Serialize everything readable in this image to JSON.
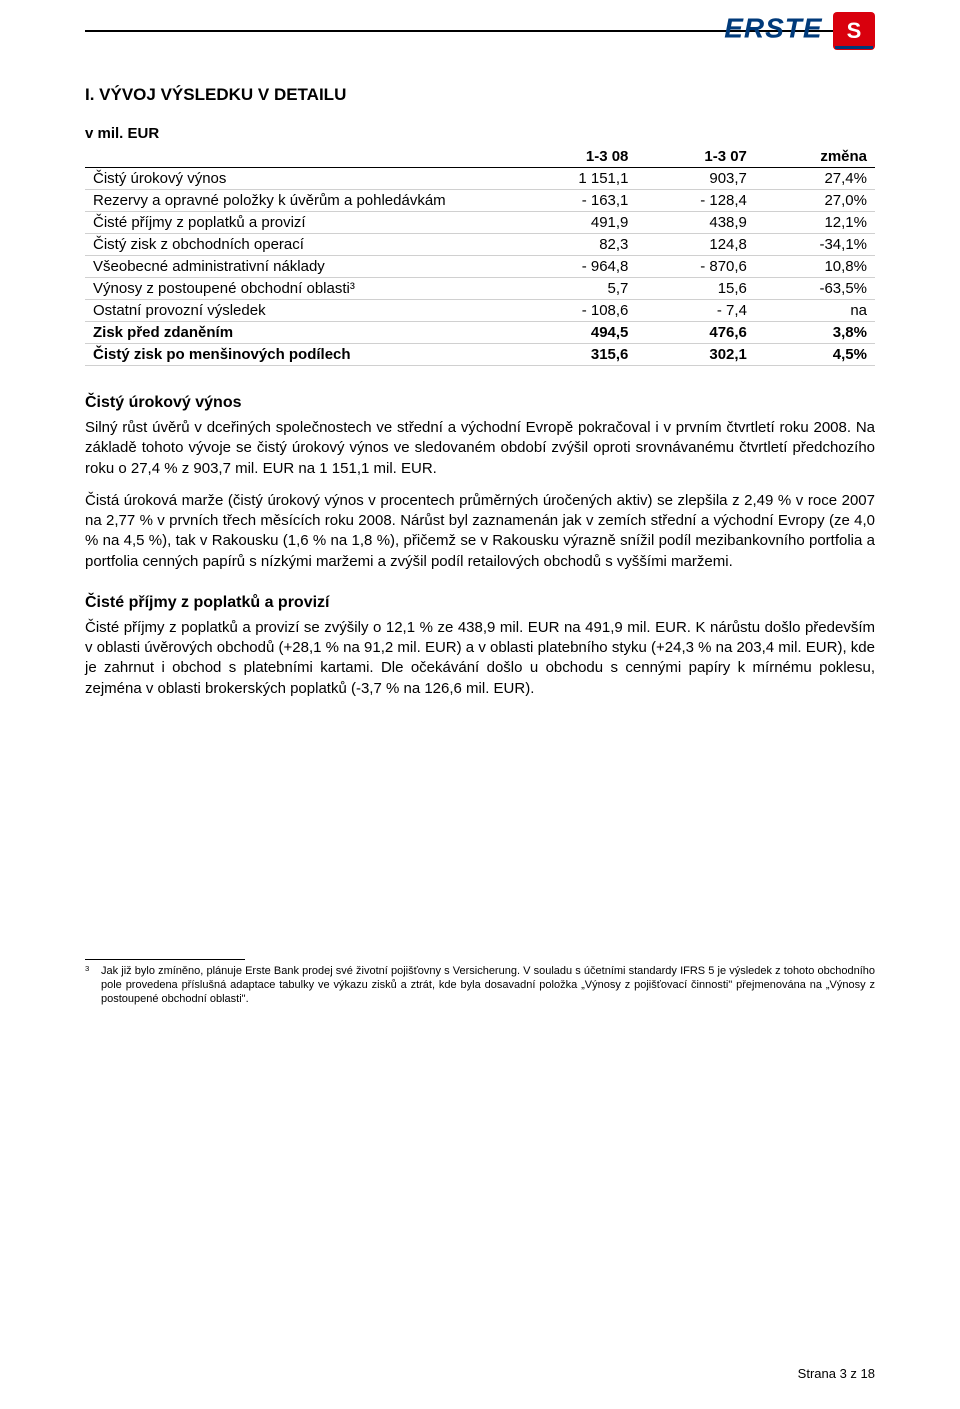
{
  "logo": {
    "text": "ERSTE",
    "text_color": "#003a7a",
    "accent_color": "#d9000d"
  },
  "section_title": "I. VÝVOJ VÝSLEDKU V DETAILU",
  "table": {
    "caption": "v mil. EUR",
    "columns": [
      "",
      "1-3 08",
      "1-3 07",
      "změna"
    ],
    "col_align": [
      "left",
      "right",
      "right",
      "right"
    ],
    "rows": [
      {
        "cells": [
          "Čistý úrokový výnos",
          "1 151,1",
          "903,7",
          "27,4%"
        ],
        "bold": false
      },
      {
        "cells": [
          "Rezervy a opravné položky k úvěrům a pohledávkám",
          "- 163,1",
          "- 128,4",
          "27,0%"
        ],
        "bold": false
      },
      {
        "cells": [
          "Čisté příjmy z poplatků a provizí",
          "491,9",
          "438,9",
          "12,1%"
        ],
        "bold": false
      },
      {
        "cells": [
          "Čistý zisk z obchodních operací",
          "82,3",
          "124,8",
          "-34,1%"
        ],
        "bold": false
      },
      {
        "cells": [
          "Všeobecné administrativní náklady",
          "- 964,8",
          "- 870,6",
          "10,8%"
        ],
        "bold": false
      },
      {
        "cells": [
          "Výnosy z postoupené obchodní oblasti³",
          "5,7",
          "15,6",
          "-63,5%"
        ],
        "bold": false
      },
      {
        "cells": [
          "Ostatní provozní výsledek",
          "- 108,6",
          "- 7,4",
          "na"
        ],
        "bold": false
      },
      {
        "cells": [
          "Zisk před zdaněním",
          "494,5",
          "476,6",
          "3,8%"
        ],
        "bold": true
      },
      {
        "cells": [
          "Čistý zisk po menšinových podílech",
          "315,6",
          "302,1",
          "4,5%"
        ],
        "bold": true
      }
    ],
    "row_border_color": "#d0d0d0",
    "fontsize": 15
  },
  "sections": [
    {
      "heading": "Čistý úrokový výnos",
      "paragraphs": [
        "Silný růst úvěrů v dceřiných společnostech ve střední a východní Evropě pokračoval i v prvním čtvrtletí roku 2008. Na základě tohoto vývoje se čistý úrokový výnos ve sledovaném období zvýšil oproti srovnávanému čtvrtletí předchozího roku o 27,4 % z 903,7 mil. EUR na 1 151,1 mil. EUR.",
        "Čistá úroková marže (čistý úrokový výnos v procentech průměrných úročených aktiv) se zlepšila z 2,49 % v roce 2007 na 2,77 % v prvních třech měsících roku 2008. Nárůst byl zaznamenán jak v zemích střední a východní Evropy (ze 4,0 % na 4,5 %), tak v Rakousku (1,6 % na 1,8 %), přičemž se v Rakousku výrazně snížil podíl mezibankovního portfolia a portfolia cenných papírů s nízkými maržemi a zvýšil podíl retailových obchodů s vyššími maržemi."
      ]
    },
    {
      "heading": "Čisté příjmy z poplatků a provizí",
      "paragraphs": [
        "Čisté příjmy z poplatků a provizí se zvýšily o 12,1 % ze 438,9 mil. EUR na 491,9 mil. EUR. K nárůstu došlo především v oblasti úvěrových obchodů (+28,1 % na 91,2 mil. EUR) a v oblasti platebního styku (+24,3 % na 203,4 mil. EUR), kde je zahrnut i obchod s platebními kartami. Dle očekávání došlo u obchodu s cennými papíry k mírnému poklesu, zejména v oblasti brokerských poplatků (-3,7 % na 126,6 mil. EUR)."
      ]
    }
  ],
  "footnote": {
    "number": "3",
    "text": "Jak již bylo zmíněno, plánuje Erste Bank prodej své životní pojišťovny s Versicherung. V souladu s účetními standardy IFRS 5 je výsledek z tohoto obchodního pole provedena příslušná adaptace tabulky ve výkazu zisků a ztrát, kde byla dosavadní položka „Výnosy z pojišťovací činnosti\" přejmenována na „Výnosy z postoupené obchodní oblasti\"."
  },
  "page_number": "Strana 3 z 18",
  "colors": {
    "text": "#000000",
    "background": "#ffffff",
    "rule": "#000000"
  }
}
